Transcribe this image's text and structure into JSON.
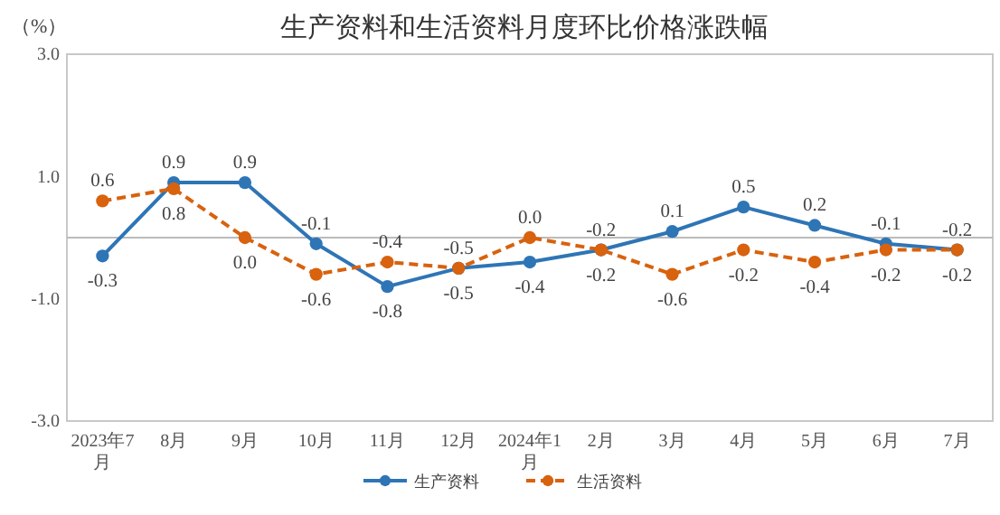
{
  "chart_data": {
    "type": "line",
    "title": "生产资料和生活资料月度环比价格涨跌幅",
    "ylabel": "（%）",
    "categories": [
      "2023年7月",
      "8月",
      "9月",
      "10月",
      "11月",
      "12月",
      "2024年1月",
      "2月",
      "3月",
      "4月",
      "5月",
      "6月",
      "7月"
    ],
    "series": [
      {
        "name": "生产资料",
        "color": "#2e75b6",
        "line_style": "solid",
        "values": [
          -0.3,
          0.9,
          0.9,
          -0.1,
          -0.8,
          -0.5,
          -0.4,
          -0.2,
          0.1,
          0.5,
          0.2,
          -0.1,
          -0.2
        ],
        "value_labels": [
          "-0.3",
          "0.9",
          "0.9",
          "-0.1",
          "-0.8",
          "-0.5",
          "-0.4",
          "-0.2",
          "0.1",
          "0.5",
          "0.2",
          "-0.1",
          "-0.2"
        ]
      },
      {
        "name": "生活资料",
        "color": "#d8620e",
        "line_style": "dashed",
        "values": [
          0.6,
          0.8,
          0.0,
          -0.6,
          -0.4,
          -0.5,
          0.0,
          -0.2,
          -0.6,
          -0.2,
          -0.4,
          -0.2,
          -0.2
        ],
        "value_labels": [
          "0.6",
          "0.8",
          "0.0",
          "-0.6",
          "-0.4",
          "-0.5",
          "0.0",
          "-0.2",
          "-0.6",
          "-0.2",
          "-0.4",
          "-0.2",
          "-0.2"
        ]
      }
    ],
    "ylim": [
      -3,
      3
    ],
    "yticks": [
      {
        "value": -3,
        "label": "-3.0"
      },
      {
        "value": -1,
        "label": "-1.0"
      },
      {
        "value": 1,
        "label": "1.0"
      },
      {
        "value": 3,
        "label": "3.0"
      }
    ],
    "grid": false,
    "legend": "bottom",
    "marker": "circle"
  }
}
